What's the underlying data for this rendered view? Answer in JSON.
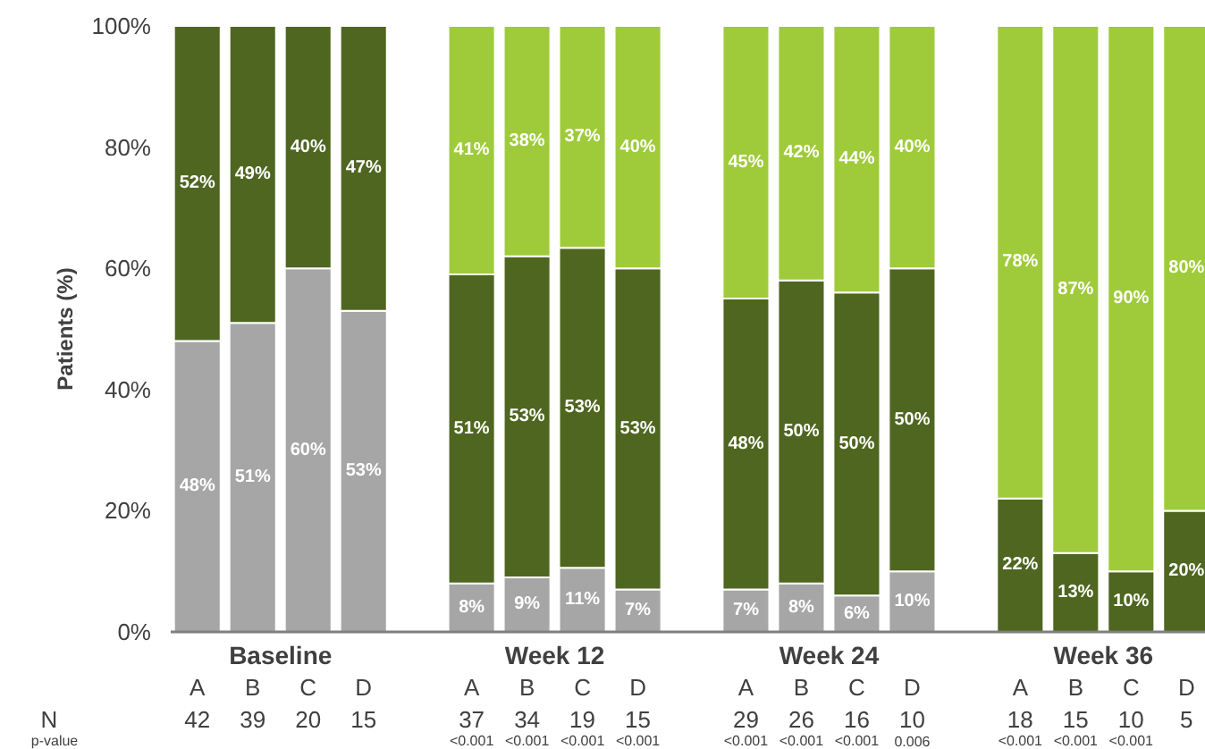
{
  "chart_data": {
    "type": "bar",
    "stacked": true,
    "ylabel": "Patients (%)",
    "categories": [
      "A",
      "B",
      "C",
      "D",
      "A",
      "B",
      "C",
      "D",
      "A",
      "B",
      "C",
      "D",
      "A",
      "B",
      "C",
      "D"
    ],
    "ylim": [
      0,
      100
    ],
    "yticks": [
      {
        "value": 0,
        "label": "0%"
      },
      {
        "value": 20,
        "label": "20%"
      },
      {
        "value": 40,
        "label": "40%"
      },
      {
        "value": 60,
        "label": "60%"
      },
      {
        "value": 80,
        "label": "80%"
      },
      {
        "value": 100,
        "label": "100%"
      }
    ],
    "grid": false,
    "series": [
      {
        "color": "#a6a6a6",
        "values": [
          48,
          51,
          60,
          53,
          8,
          9,
          10.6,
          7,
          7,
          8,
          6,
          10,
          null,
          null,
          null,
          null
        ],
        "value_labels": [
          "48%",
          "51%",
          "60%",
          "53%",
          "8%",
          "9%",
          "11%",
          "7%",
          "7%",
          "8%",
          "6%",
          "10%",
          null,
          null,
          null,
          null
        ]
      },
      {
        "color": "#4f6620",
        "values": [
          52,
          49,
          40,
          47,
          51,
          53,
          52.8,
          53,
          48,
          50,
          50,
          50,
          22,
          13,
          10,
          20
        ],
        "value_labels": [
          "52%",
          "49%",
          "40%",
          "47%",
          "51%",
          "53%",
          "53%",
          "53%",
          "48%",
          "50%",
          "50%",
          "50%",
          "22%",
          "13%",
          "10%",
          "20%"
        ]
      },
      {
        "color": "#9fcb3b",
        "values": [
          null,
          null,
          null,
          null,
          41,
          38,
          36.6,
          40,
          45,
          42,
          44,
          40,
          78,
          87,
          90,
          80
        ],
        "value_labels": [
          null,
          null,
          null,
          null,
          "41%",
          "38%",
          "37%",
          "40%",
          "45%",
          "42%",
          "44%",
          "40%",
          "78%",
          "87%",
          "90%",
          "80%"
        ]
      }
    ],
    "annotations": [
      "Baseline",
      "Week 12",
      "Week 24",
      "Week 36",
      "N",
      "42",
      "39",
      "20",
      "15",
      "37",
      "34",
      "19",
      "15",
      "29",
      "26",
      "16",
      "10",
      "18",
      "15",
      "10",
      "5",
      "p-value",
      "<0.001",
      "<0.001",
      "<0.001",
      "<0.001",
      "<0.001",
      "<0.001",
      "<0.001",
      "0.006",
      "<0.001",
      "<0.001",
      "<0.001"
    ]
  }
}
